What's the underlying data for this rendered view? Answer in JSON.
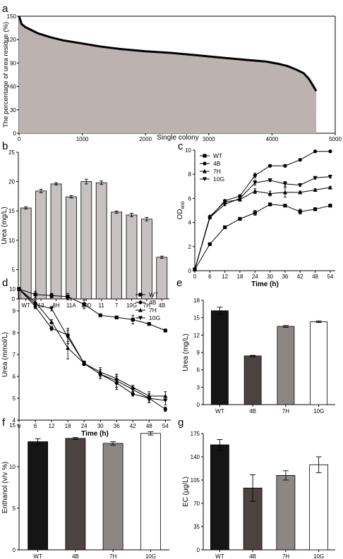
{
  "chart_data": [
    {
      "panel": "a",
      "type": "area",
      "xlabel": "Single colony",
      "ylabel": "The percentage of urea residue (%)",
      "xlim": [
        0,
        5000
      ],
      "ylim": [
        0,
        150
      ],
      "xticks": [
        "0",
        "1000",
        "2000",
        "3000",
        "4000",
        "5000"
      ],
      "yticks": [
        "0",
        "30",
        "60",
        "90",
        "120",
        "150"
      ],
      "fill_color": "#bcb2b0",
      "x": [
        0,
        40,
        100,
        200,
        300,
        500,
        700,
        1000,
        1300,
        1600,
        2000,
        2400,
        2800,
        3200,
        3600,
        3900,
        4100,
        4250,
        4400,
        4500,
        4580,
        4650,
        4700
      ],
      "y": [
        150,
        140,
        136,
        132,
        128,
        123,
        119,
        115,
        111,
        108,
        105,
        103,
        100,
        97,
        94,
        92,
        89,
        86,
        81,
        77,
        70,
        61,
        54
      ]
    },
    {
      "panel": "b",
      "type": "bar",
      "ylabel": "Urea (mg/L)",
      "ylim": [
        0,
        25
      ],
      "yticks": [
        "0",
        "5",
        "10",
        "15",
        "20",
        "25"
      ],
      "bar_color": "#c6c2c1",
      "categories": [
        "WT",
        "13",
        "8H",
        "11A",
        "10D",
        "11",
        "7",
        "10G",
        "7H",
        "4B"
      ],
      "values": [
        15.5,
        18.4,
        19.6,
        17.4,
        20.0,
        19.8,
        14.8,
        14.3,
        13.6,
        7.1
      ],
      "errors": [
        0.2,
        0.3,
        0.2,
        0.2,
        0.4,
        0.3,
        0.2,
        0.3,
        0.3,
        0.2
      ]
    },
    {
      "panel": "c",
      "type": "line",
      "xlabel": "Time (h)",
      "ylabel": "OD",
      "ylabel_sub": "600",
      "xlim": [
        0,
        56
      ],
      "ylim": [
        0,
        10
      ],
      "xticks": [
        "0",
        "6",
        "12",
        "18",
        "24",
        "30",
        "36",
        "42",
        "48",
        "54"
      ],
      "yticks": [
        "0",
        "2",
        "4",
        "6",
        "8",
        "10"
      ],
      "x": [
        0,
        6,
        12,
        18,
        24,
        30,
        36,
        42,
        48,
        54
      ],
      "series": [
        {
          "name": "WT",
          "marker": "square",
          "values": [
            0.1,
            2.2,
            3.6,
            4.3,
            4.8,
            5.5,
            5.4,
            4.9,
            5.1,
            5.4
          ],
          "errors": [
            0,
            0.1,
            0.1,
            0.1,
            0.2,
            0.1,
            0.1,
            0.2,
            0.1,
            0.1
          ]
        },
        {
          "name": "4B",
          "marker": "circle",
          "values": [
            0.1,
            4.4,
            5.8,
            6.2,
            7.9,
            8.7,
            8.7,
            9.2,
            9.9,
            9.9
          ],
          "errors": [
            0,
            0.1,
            0.1,
            0.1,
            0.2,
            0.1,
            0.1,
            0.1,
            0.1,
            0.1
          ]
        },
        {
          "name": "7H",
          "marker": "triangle-up",
          "values": [
            0.1,
            4.5,
            5.7,
            5.9,
            6.6,
            6.4,
            6.5,
            6.5,
            6.7,
            6.9
          ],
          "errors": [
            0,
            0.1,
            0.1,
            0.1,
            0.2,
            0.2,
            0.4,
            0.1,
            0.1,
            0.1
          ]
        },
        {
          "name": "10G",
          "marker": "triangle-down",
          "values": [
            0.1,
            4.4,
            5.5,
            6.0,
            7.3,
            7.5,
            7.2,
            7.1,
            7.7,
            7.8
          ],
          "errors": [
            0,
            0.1,
            0.1,
            0.1,
            0.2,
            0.1,
            0.2,
            0.1,
            0.1,
            0.1
          ]
        }
      ],
      "legend": "top-left"
    },
    {
      "panel": "d",
      "type": "line",
      "xlabel": "Time (h)",
      "ylabel": "Urea (mmol/L)",
      "xlim": [
        0,
        56
      ],
      "ylim": [
        4,
        10
      ],
      "xticks": [
        "0",
        "6",
        "12",
        "18",
        "24",
        "30",
        "36",
        "42",
        "48",
        "54"
      ],
      "yticks": [
        "4",
        "5",
        "6",
        "7",
        "8",
        "9",
        "10"
      ],
      "x": [
        0,
        6,
        12,
        18,
        24,
        30,
        36,
        42,
        48,
        54
      ],
      "series": [
        {
          "name": "WT",
          "marker": "square",
          "values": [
            10.0,
            9.75,
            9.7,
            9.65,
            9.3,
            8.8,
            8.7,
            8.6,
            8.4,
            8.1
          ],
          "errors": [
            0,
            0.15,
            0.1,
            0.15,
            0.2,
            0.05,
            0.05,
            0.2,
            0.05,
            0.05
          ]
        },
        {
          "name": "4B",
          "marker": "circle",
          "values": [
            10.0,
            9.2,
            8.2,
            7.9,
            6.6,
            6.1,
            5.7,
            5.2,
            5.0,
            4.5
          ],
          "errors": [
            0,
            0.1,
            0.1,
            0.3,
            0.1,
            0.2,
            0.3,
            0.1,
            0.2,
            0.1
          ]
        },
        {
          "name": "7H",
          "marker": "triangle-up",
          "values": [
            10.0,
            9.4,
            8.5,
            7.3,
            6.6,
            6.2,
            5.9,
            5.5,
            5.1,
            5.1
          ],
          "errors": [
            0,
            0.1,
            0.1,
            0.5,
            0.1,
            0.2,
            0.2,
            0.1,
            0.2,
            0.2
          ]
        },
        {
          "name": "10G",
          "marker": "triangle-down",
          "values": [
            10.0,
            9.3,
            9.1,
            7.8,
            6.6,
            6.1,
            5.8,
            5.4,
            5.0,
            4.9
          ],
          "errors": [
            0,
            0.1,
            0.1,
            0.3,
            0.1,
            0.2,
            0.3,
            0.1,
            0.2,
            0.2
          ]
        }
      ],
      "legend": "right"
    },
    {
      "panel": "e",
      "type": "bar",
      "ylabel": "Urea (mg/L)",
      "ylim": [
        0,
        18
      ],
      "yticks": [
        "0",
        "3",
        "6",
        "9",
        "12",
        "15",
        "18"
      ],
      "categories": [
        "WT",
        "4B",
        "7H",
        "10G"
      ],
      "values": [
        16.2,
        8.4,
        13.5,
        14.3
      ],
      "errors": [
        0.6,
        0.1,
        0.15,
        0.15
      ],
      "colors": [
        "#151515",
        "#4b4341",
        "#8c8684",
        "#ffffff"
      ]
    },
    {
      "panel": "f",
      "type": "bar",
      "ylabel": "Enthanol (v/v %)",
      "ylim": [
        0,
        15
      ],
      "yticks": [
        "0",
        "5",
        "10",
        "15"
      ],
      "categories": [
        "WT",
        "4B",
        "7H",
        "10G"
      ],
      "values": [
        13.0,
        13.4,
        12.8,
        14.0
      ],
      "errors": [
        0.35,
        0.1,
        0.2,
        0.2
      ],
      "colors": [
        "#151515",
        "#4b4341",
        "#8c8684",
        "#ffffff"
      ]
    },
    {
      "panel": "g",
      "type": "bar",
      "ylabel": "EC (μg/L)",
      "ylim": [
        0,
        175
      ],
      "yticks": [
        "0",
        "35",
        "70",
        "105",
        "140",
        "175"
      ],
      "categories": [
        "WT",
        "4B",
        "7H",
        "10G"
      ],
      "values": [
        158,
        93,
        112,
        128
      ],
      "errors": [
        8,
        20,
        7,
        12
      ],
      "colors": [
        "#151515",
        "#4b4341",
        "#8c8684",
        "#ffffff"
      ]
    }
  ]
}
